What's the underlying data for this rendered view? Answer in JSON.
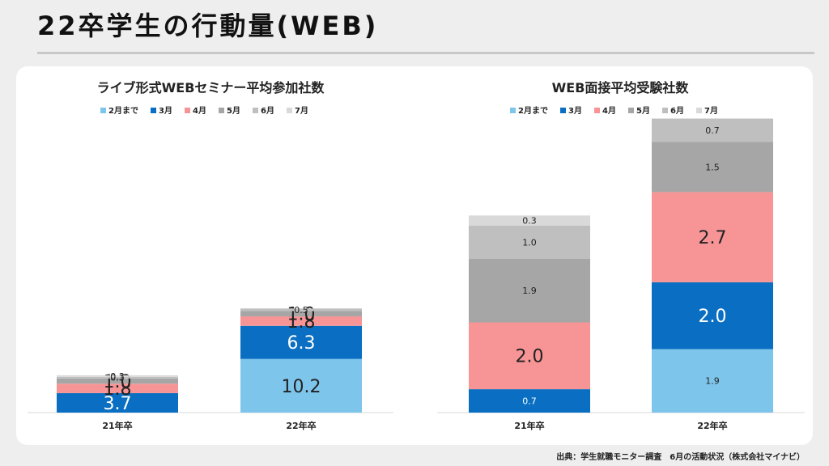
{
  "page": {
    "title": "22卒学生の行動量(WEB)",
    "source": "出典：学生就職モニター調査　6月の活動状況（株式会社マイナビ）"
  },
  "colors": {
    "2月まで": "#7ec5ec",
    "3月": "#0a6fc2",
    "4月": "#f79596",
    "5月": "#a6a6a6",
    "6月": "#bfbfbf",
    "7月": "#d9d9d9"
  },
  "chart_data": [
    {
      "type": "bar",
      "stacked": true,
      "title": "ライブ形式WEBセミナー平均参加社数",
      "categories": [
        "21年卒",
        "22年卒"
      ],
      "legend_position": "top",
      "series": [
        {
          "name": "2月まで",
          "values": [
            null,
            10.2
          ]
        },
        {
          "name": "3月",
          "values": [
            3.7,
            6.3
          ]
        },
        {
          "name": "4月",
          "values": [
            1.8,
            1.8
          ]
        },
        {
          "name": "5月",
          "values": [
            1.0,
            1.0
          ]
        },
        {
          "name": "6月",
          "values": [
            0.3,
            0.5
          ]
        },
        {
          "name": "7月",
          "values": [
            0.3,
            null
          ]
        }
      ]
    },
    {
      "type": "bar",
      "stacked": true,
      "title": "WEB面接平均受験社数",
      "categories": [
        "21年卒",
        "22年卒"
      ],
      "legend_position": "top",
      "series": [
        {
          "name": "2月まで",
          "values": [
            null,
            1.9
          ]
        },
        {
          "name": "3月",
          "values": [
            0.7,
            2.0
          ]
        },
        {
          "name": "4月",
          "values": [
            2.0,
            2.7
          ]
        },
        {
          "name": "5月",
          "values": [
            1.9,
            1.5
          ]
        },
        {
          "name": "6月",
          "values": [
            1.0,
            0.7
          ]
        },
        {
          "name": "7月",
          "values": [
            0.3,
            null
          ]
        }
      ]
    }
  ]
}
